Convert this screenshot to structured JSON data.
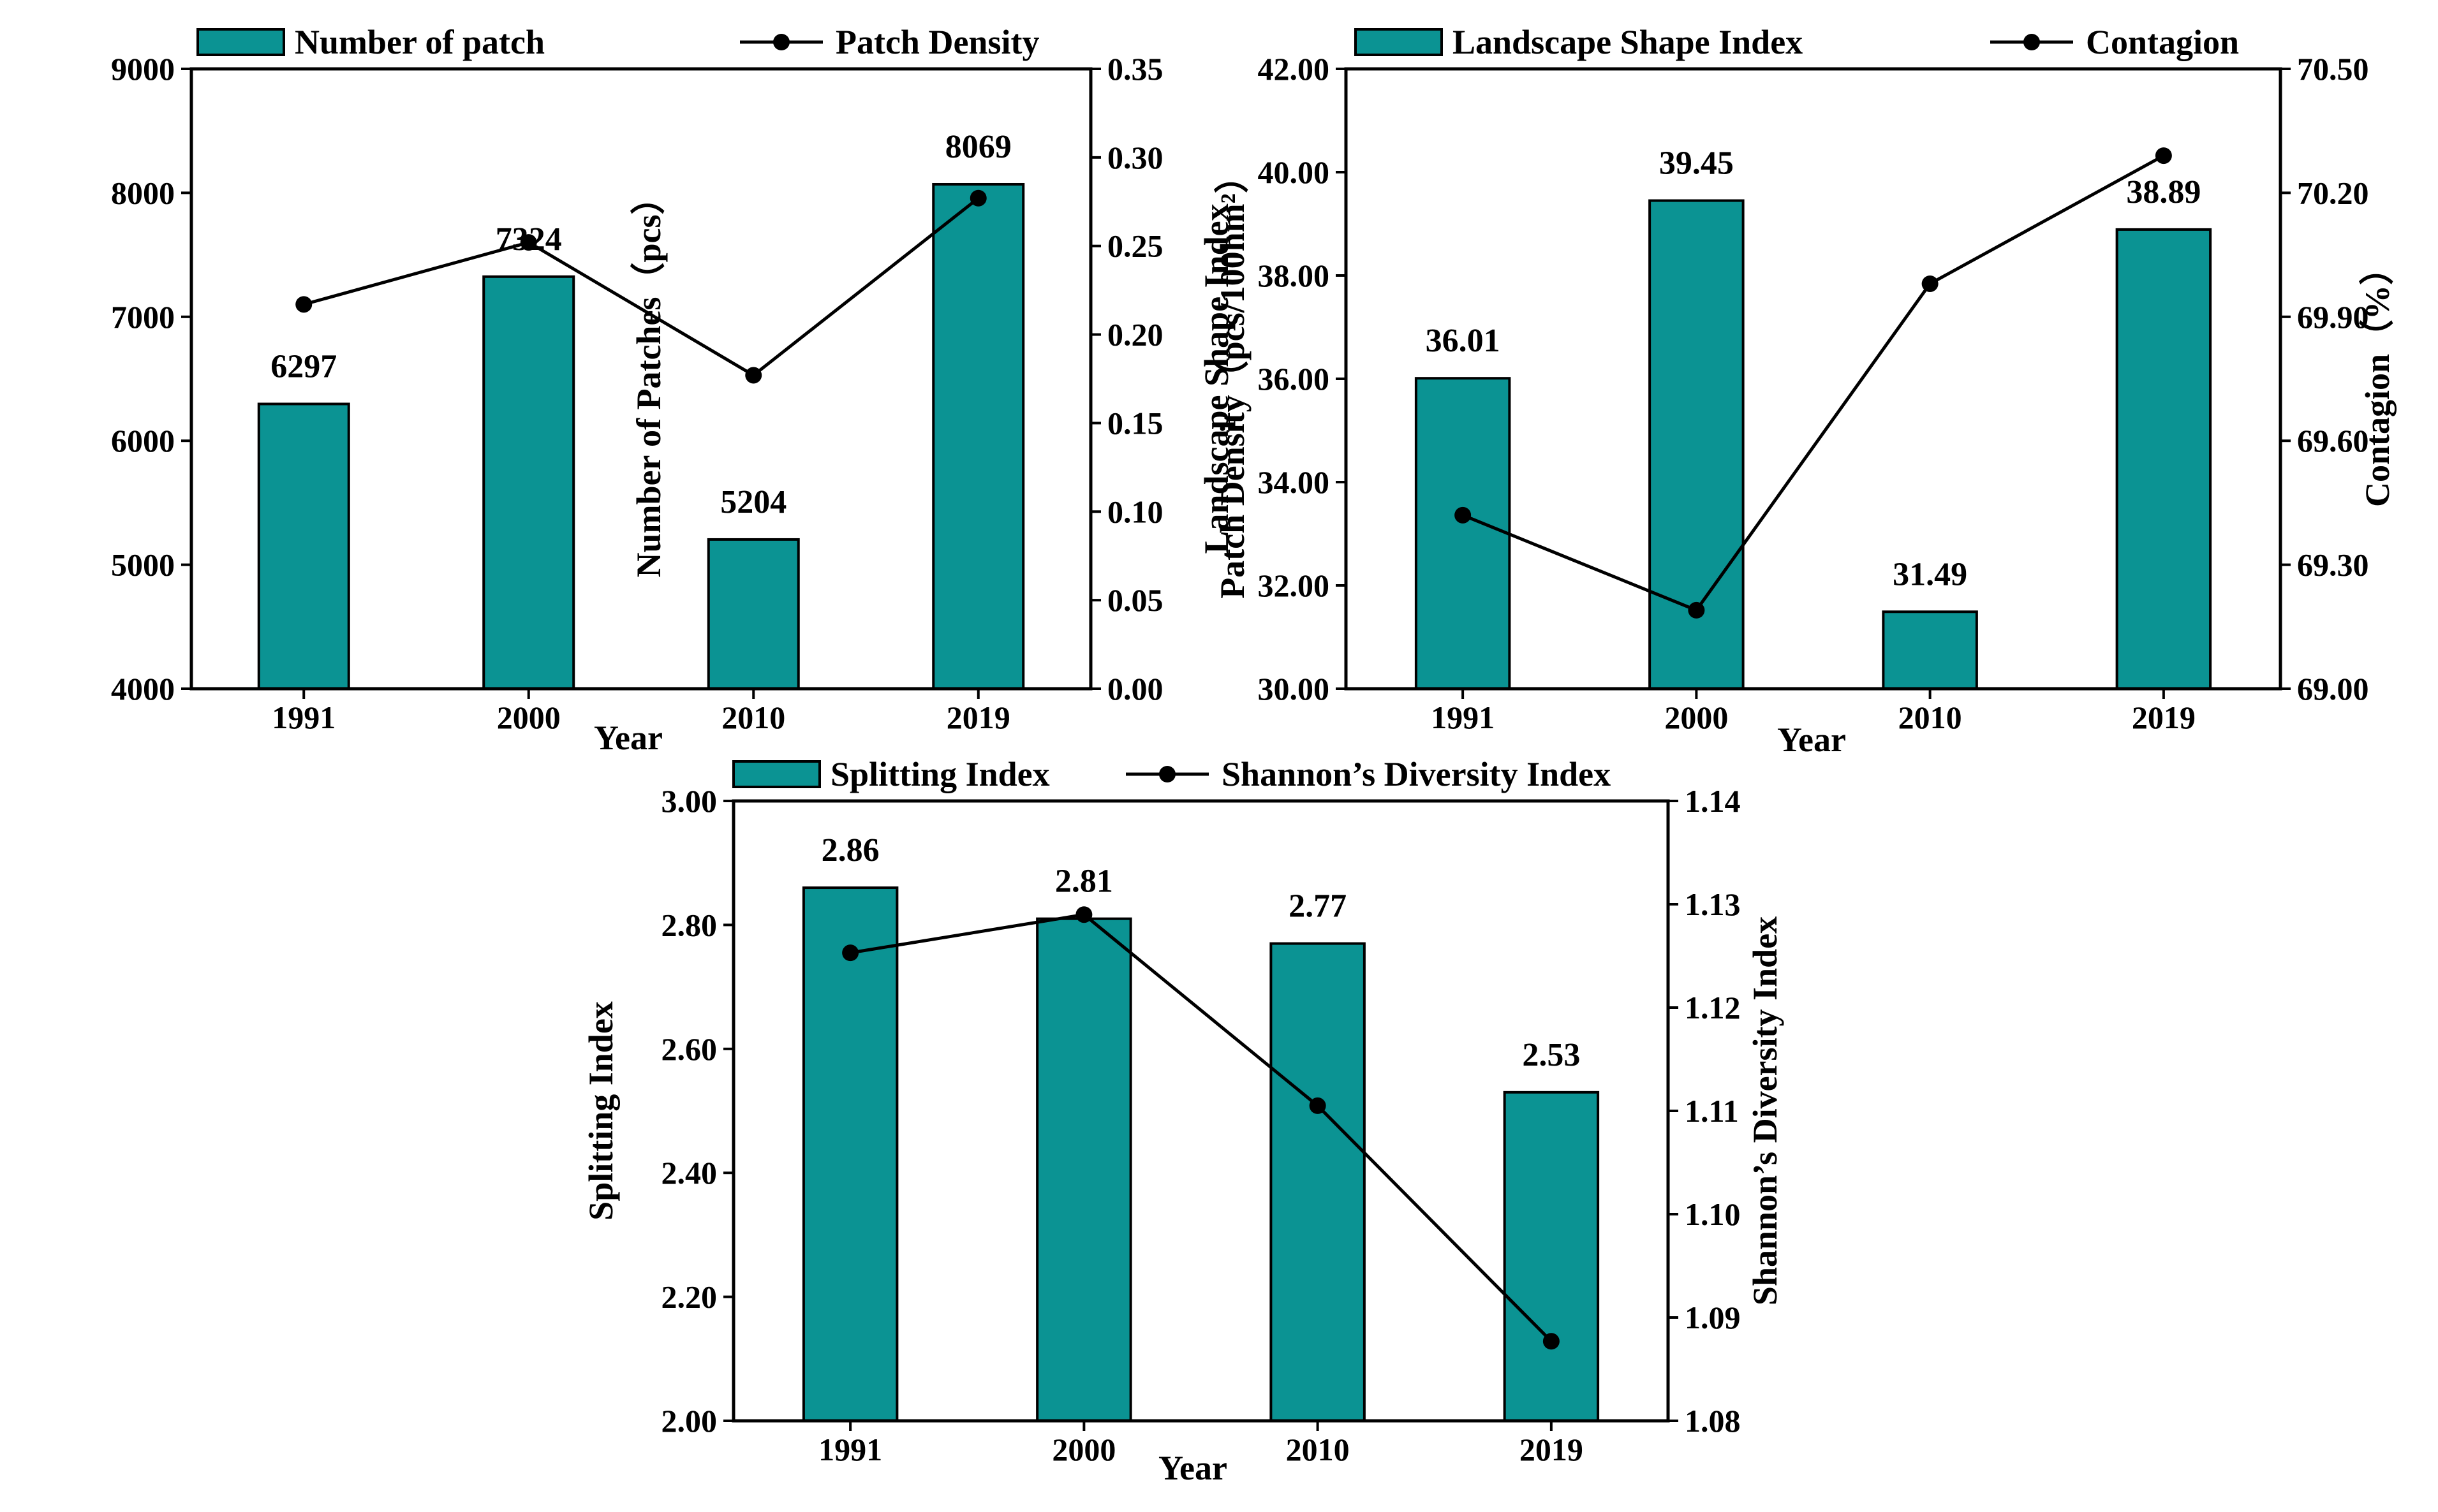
{
  "colors": {
    "bar": "#0b9393",
    "bar_edge": "#000000",
    "line": "#000000"
  },
  "chart_data": [
    {
      "type": "bar+line",
      "categories": [
        "1991",
        "2000",
        "2010",
        "2019"
      ],
      "xlabel": "Year",
      "bar_series": {
        "name": "Number of patch",
        "values": [
          6297,
          7324,
          5204,
          8069
        ],
        "labels": [
          "6297",
          "7324",
          "5204",
          "8069"
        ]
      },
      "line_series": {
        "name": "Patch Density",
        "values": [
          0.217,
          0.252,
          0.177,
          0.277
        ]
      },
      "ylabel_left": "Number of Patches（pcs）",
      "ylabel_right": "Patch Density（pcs/100hm²）",
      "ylim_left": [
        4000,
        9000
      ],
      "ylim_right": [
        0,
        0.35
      ],
      "yticks_left": [
        "4000",
        "5000",
        "6000",
        "7000",
        "8000",
        "9000"
      ],
      "yticks_right": [
        "0.00",
        "0.05",
        "0.10",
        "0.15",
        "0.20",
        "0.25",
        "0.30",
        "0.35"
      ],
      "legend": "top",
      "grid": false
    },
    {
      "type": "bar+line",
      "categories": [
        "1991",
        "2000",
        "2010",
        "2019"
      ],
      "xlabel": "Year",
      "bar_series": {
        "name": "Landscape Shape Index",
        "values": [
          36.01,
          39.45,
          31.49,
          38.89
        ],
        "labels": [
          "36.01",
          "39.45",
          "31.49",
          "38.89"
        ]
      },
      "line_series": {
        "name": "Contagion",
        "values": [
          69.42,
          69.19,
          69.98,
          70.29
        ]
      },
      "ylabel_left": "Landscape Shape Index",
      "ylabel_right": "Contagion（%）",
      "ylim_left": [
        30,
        42
      ],
      "ylim_right": [
        69,
        70.5
      ],
      "yticks_left": [
        "30.00",
        "32.00",
        "34.00",
        "36.00",
        "38.00",
        "40.00",
        "42.00"
      ],
      "yticks_right": [
        "69.00",
        "69.30",
        "69.60",
        "69.90",
        "70.20",
        "70.50"
      ],
      "legend": "top",
      "grid": false
    },
    {
      "type": "bar+line",
      "categories": [
        "1991",
        "2000",
        "2010",
        "2019"
      ],
      "xlabel": "Year",
      "bar_series": {
        "name": "Splitting Index",
        "values": [
          2.86,
          2.81,
          2.77,
          2.53
        ],
        "labels": [
          "2.86",
          "2.81",
          "2.77",
          "2.53"
        ]
      },
      "line_series": {
        "name": "Shannon’s Diversity Index",
        "values": [
          1.1253,
          1.129,
          1.1105,
          1.0877
        ]
      },
      "ylabel_left": "Splitting Index",
      "ylabel_right": "Shannon’s Diversity Index",
      "ylim_left": [
        2.0,
        3.0
      ],
      "ylim_right": [
        1.08,
        1.14
      ],
      "yticks_left": [
        "2.00",
        "2.20",
        "2.40",
        "2.60",
        "2.80",
        "3.00"
      ],
      "yticks_right": [
        "1.08",
        "1.09",
        "1.10",
        "1.11",
        "1.12",
        "1.13",
        "1.14"
      ],
      "legend": "top",
      "grid": false
    }
  ]
}
